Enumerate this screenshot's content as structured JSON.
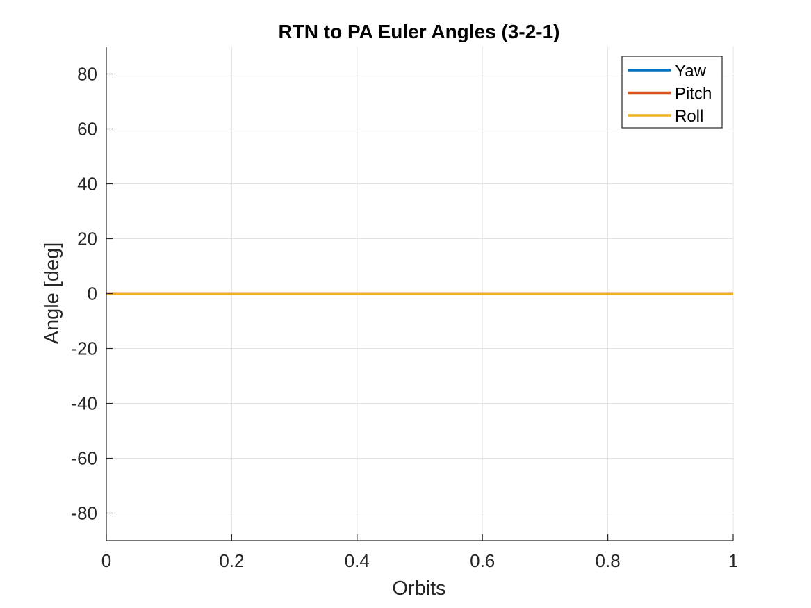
{
  "chart_data": {
    "type": "line",
    "title": "RTN to PA Euler Angles (3-2-1)",
    "xlabel": "Orbits",
    "ylabel": "Angle [deg]",
    "xlim": [
      0,
      1
    ],
    "ylim": [
      -90,
      90
    ],
    "xticks": [
      0,
      0.2,
      0.4,
      0.6,
      0.8,
      1
    ],
    "xtick_labels": [
      "0",
      "0.2",
      "0.4",
      "0.6",
      "0.8",
      "1"
    ],
    "yticks": [
      80,
      60,
      40,
      20,
      0,
      -20,
      -40,
      -60,
      -80
    ],
    "ytick_labels": [
      "80",
      "60",
      "40",
      "20",
      "0",
      "-20",
      "-40",
      "-60",
      "-80"
    ],
    "grid": true,
    "legend_position": "top-right",
    "x": [
      0,
      0.2,
      0.4,
      0.6,
      0.8,
      1
    ],
    "series": [
      {
        "name": "Yaw",
        "color": "#0072BD",
        "values": [
          0,
          0,
          0,
          0,
          0,
          0
        ]
      },
      {
        "name": "Pitch",
        "color": "#D95319",
        "values": [
          0,
          0,
          0,
          0,
          0,
          0
        ]
      },
      {
        "name": "Roll",
        "color": "#EDB120",
        "values": [
          0,
          0,
          0,
          0,
          0,
          0
        ]
      }
    ]
  }
}
